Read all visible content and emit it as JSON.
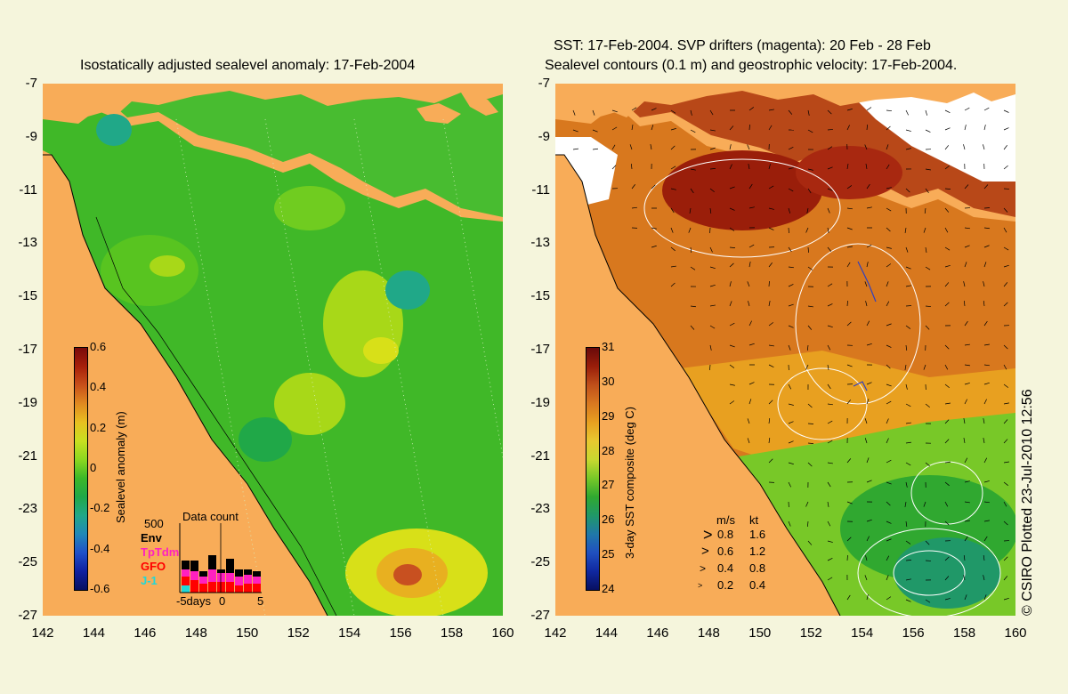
{
  "left_panel": {
    "title": "Isostatically adjusted sealevel anomaly: 17-Feb-2004",
    "colorbar": {
      "label": "Sealevel anomaly (m)",
      "ticks": [
        "0.6",
        "0.4",
        "0.2",
        "0",
        "-0.2",
        "-0.4",
        "-0.6"
      ],
      "colors": [
        "#7a0a0a",
        "#a8200a",
        "#c8501a",
        "#e08a20",
        "#e8c020",
        "#c8e020",
        "#8cd820",
        "#3cb828",
        "#20a848",
        "#20a888",
        "#2088b8",
        "#2050c8",
        "#1020a0",
        "#081060"
      ]
    },
    "data_count": {
      "title": "Data count",
      "max_label": "500",
      "missions": [
        {
          "name": "Env",
          "color": "#000000"
        },
        {
          "name": "TpTdm",
          "color": "#ff20c0"
        },
        {
          "name": "GFO",
          "color": "#ff0000"
        },
        {
          "name": "J-1",
          "color": "#20d8d8"
        }
      ],
      "axis_labels": [
        "-5days",
        "0",
        "5"
      ]
    }
  },
  "right_panel": {
    "title_line1": "SST: 17-Feb-2004. SVP drifters (magenta): 20 Feb - 28 Feb",
    "title_line2": "Sealevel contours (0.1 m) and geostrophic velocity: 17-Feb-2004.",
    "colorbar": {
      "label": "3-day SST composite (deg C)",
      "ticks": [
        "31",
        "30",
        "29",
        "28",
        "27",
        "26",
        "25",
        "24"
      ],
      "colors": [
        "#6a0a0a",
        "#9a1e0a",
        "#c0501a",
        "#d87820",
        "#e8a020",
        "#e8c830",
        "#c8d830",
        "#78c828",
        "#30a830",
        "#209868",
        "#2078a8",
        "#2050c0",
        "#1028a0",
        "#081060"
      ]
    },
    "velocity_legend": {
      "header_ms": "m/s",
      "header_kt": "kt",
      "rows": [
        {
          "ms": "0.8",
          "kt": "1.6"
        },
        {
          "ms": "0.6",
          "kt": "1.2"
        },
        {
          "ms": "0.4",
          "kt": "0.8"
        },
        {
          "ms": "0.2",
          "kt": "0.4"
        }
      ]
    }
  },
  "axes": {
    "lat_ticks": [
      "-7",
      "-9",
      "-11",
      "-13",
      "-15",
      "-17",
      "-19",
      "-21",
      "-23",
      "-25",
      "-27"
    ],
    "lon_ticks": [
      "142",
      "144",
      "146",
      "148",
      "150",
      "152",
      "154",
      "156",
      "158",
      "160"
    ]
  },
  "credit": "© CSIRO Plotted 23-Jul-2010 12:56",
  "colors": {
    "land": "#f8ac58",
    "background": "#f5f5dc",
    "contour": "#ffffff",
    "cloud": "#ffffff"
  }
}
